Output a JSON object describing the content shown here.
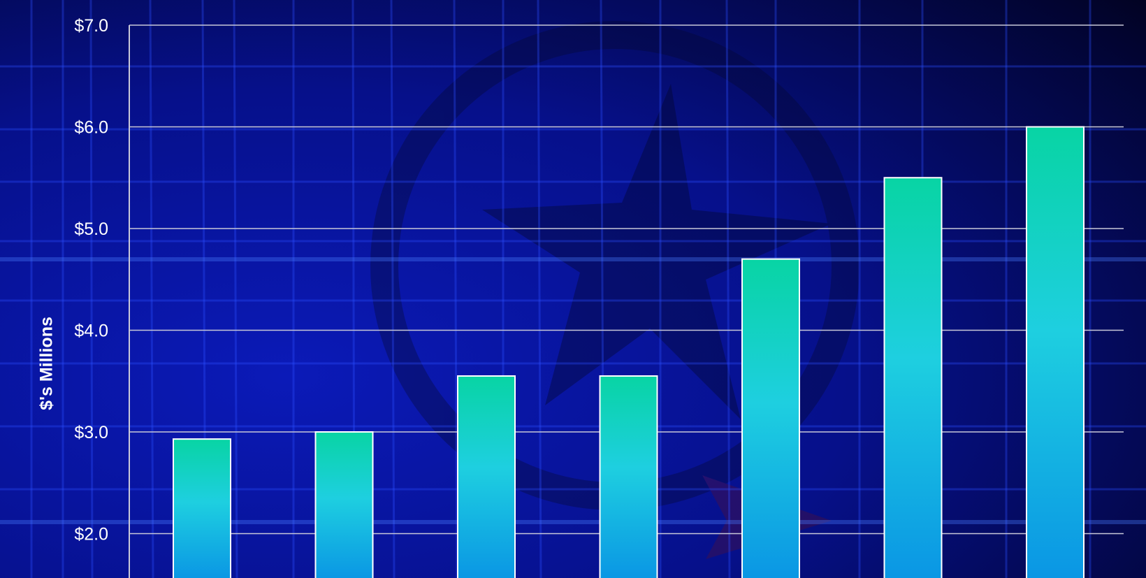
{
  "chart_data": {
    "type": "bar",
    "title": "",
    "xlabel": "",
    "ylabel": "$'s Millions",
    "ylim": [
      1.6,
      7.0
    ],
    "yticks": [
      {
        "value": 2.0,
        "label": "$2.0"
      },
      {
        "value": 3.0,
        "label": "$3.0"
      },
      {
        "value": 4.0,
        "label": "$4.0"
      },
      {
        "value": 5.0,
        "label": "$5.0"
      },
      {
        "value": 6.0,
        "label": "$6.0"
      },
      {
        "value": 7.0,
        "label": "$7.0"
      }
    ],
    "values": [
      2.93,
      3.0,
      3.55,
      3.55,
      4.7,
      5.5,
      6.0
    ],
    "grid": true,
    "legend": "none"
  },
  "colors": {
    "background_top": "#050a6e",
    "background_bottom": "#0a16b0",
    "bar_top": "#08d4a4",
    "bar_mid": "#1ecfe0",
    "bar_bottom": "#0a96e4",
    "bar_outline": "#ffffff",
    "gridline": "#c8c8d8",
    "text": "#ffffff"
  }
}
